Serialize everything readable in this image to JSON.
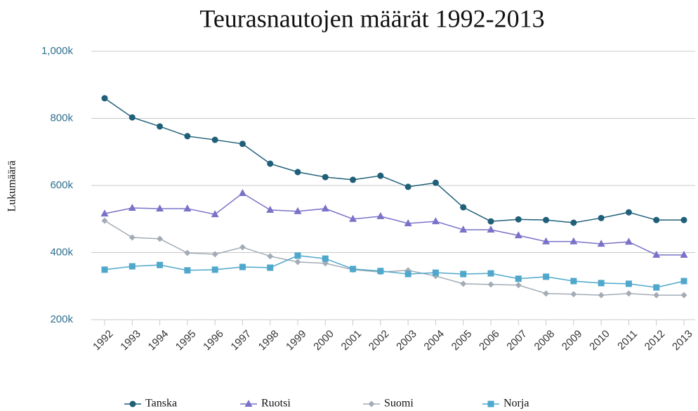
{
  "chart_data": {
    "type": "line",
    "title": "Teurasnautojen määrät 1992-2013",
    "y_label": "Lukumäärä",
    "categories": [
      "1992",
      "1993",
      "1994",
      "1995",
      "1996",
      "1997",
      "1998",
      "1999",
      "2000",
      "2001",
      "2002",
      "2003",
      "2004",
      "2005",
      "2006",
      "2007",
      "2008",
      "2009",
      "2010",
      "2011",
      "2012",
      "2013"
    ],
    "series": [
      {
        "name": "Tanska",
        "color": "#1f5f78",
        "values": [
          860000,
          803000,
          776000,
          747000,
          736000,
          724000,
          665000,
          640000,
          625000,
          617000,
          629000,
          596000,
          608000,
          535000,
          493000,
          499000,
          497000,
          489000,
          503000,
          520000,
          497000,
          497000
        ]
      },
      {
        "name": "Ruotsi",
        "color": "#7a72c8",
        "values": [
          516000,
          533000,
          531000,
          531000,
          514000,
          577000,
          527000,
          523000,
          531000,
          500000,
          508000,
          487000,
          493000,
          468000,
          468000,
          451000,
          433000,
          433000,
          426000,
          432000,
          393000,
          393000
        ]
      },
      {
        "name": "Suomi",
        "color": "#a3acb6",
        "values": [
          495000,
          445000,
          441000,
          399000,
          395000,
          416000,
          389000,
          372000,
          368000,
          349000,
          342000,
          347000,
          330000,
          307000,
          305000,
          303000,
          278000,
          276000,
          273000,
          278000,
          273000,
          273000
        ]
      },
      {
        "name": "Norja",
        "color": "#4fa7cb",
        "values": [
          349000,
          359000,
          363000,
          347000,
          349000,
          357000,
          355000,
          391000,
          382000,
          351000,
          345000,
          336000,
          340000,
          336000,
          338000,
          322000,
          328000,
          315000,
          309000,
          307000,
          296000,
          315000
        ]
      }
    ],
    "ylim": [
      200000,
      1000000
    ],
    "yticks": [
      {
        "value": 200000,
        "label": "200k"
      },
      {
        "value": 400000,
        "label": "400k"
      },
      {
        "value": 600000,
        "label": "600k"
      },
      {
        "value": 800000,
        "label": "800k"
      },
      {
        "value": 1000000,
        "label": "1,000k"
      }
    ],
    "grid": true,
    "legend": "bottom"
  }
}
